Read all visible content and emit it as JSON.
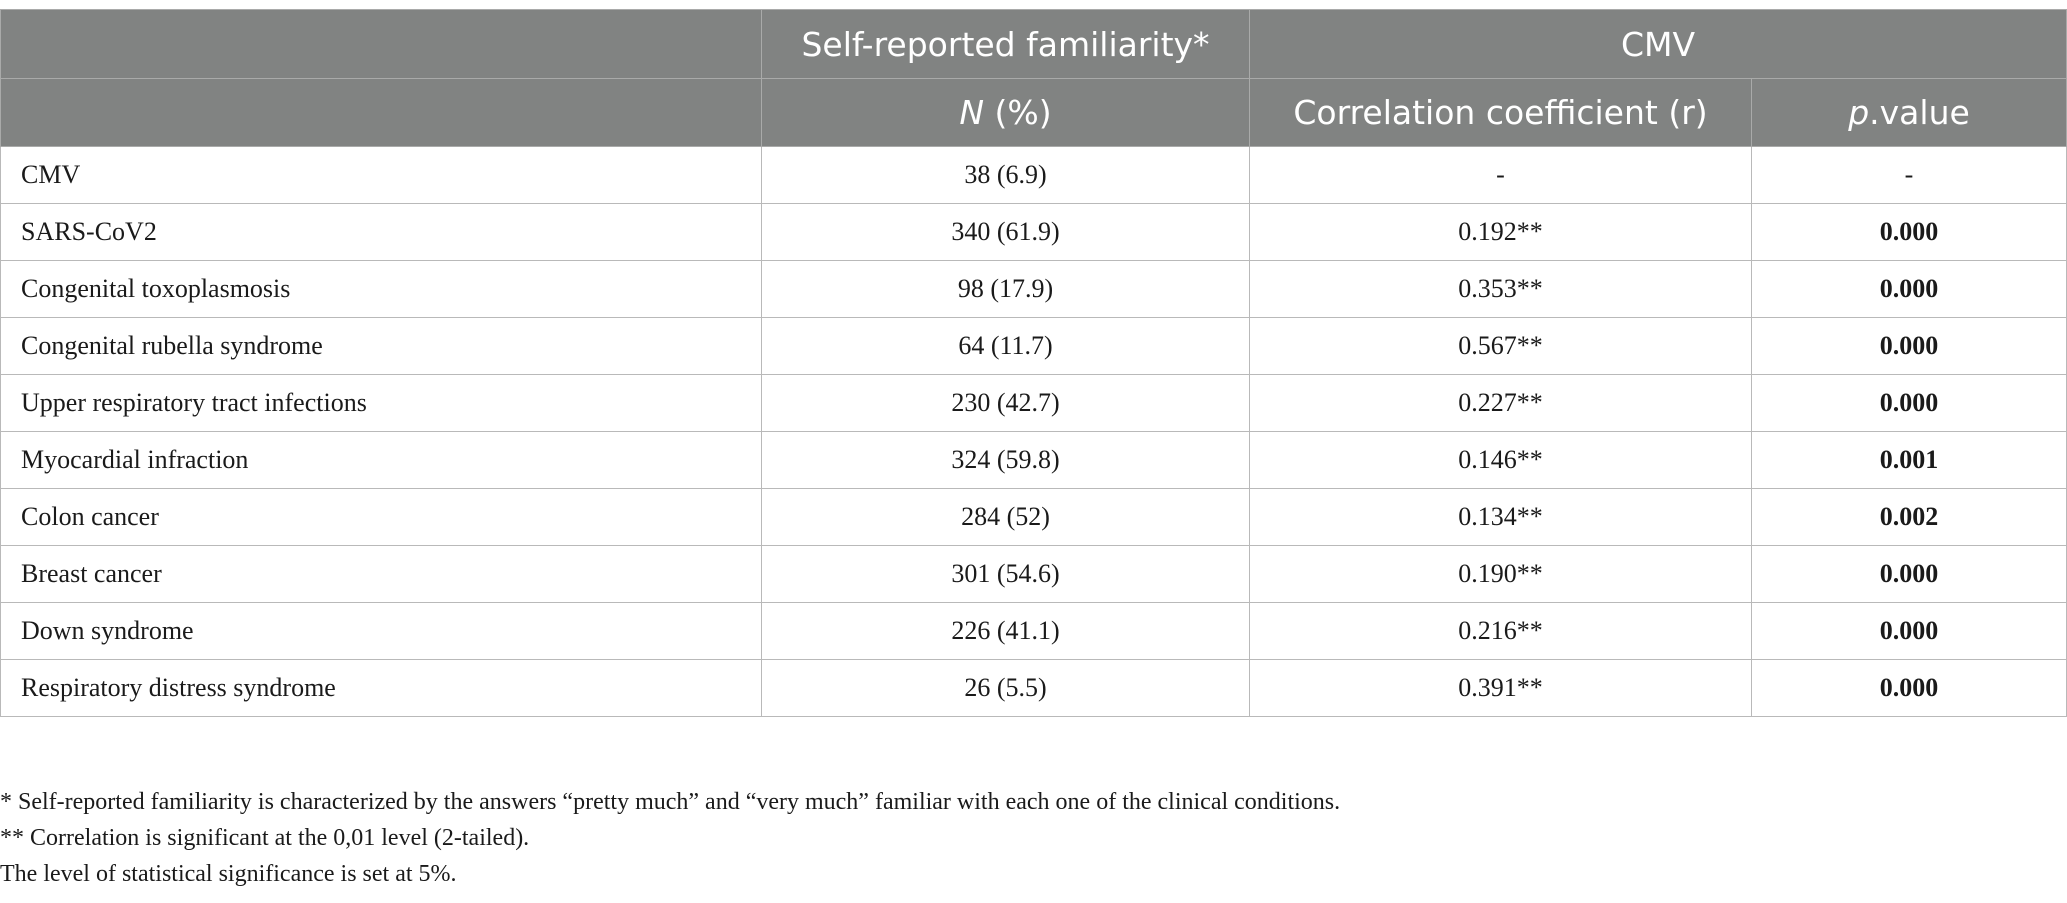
{
  "table": {
    "headers": {
      "row1": {
        "blank": "",
        "familiarity": "Self-reported familiarity*",
        "cmv": "CMV"
      },
      "row2": {
        "blank": "",
        "n_italic": "N",
        "n_rest": " (%)",
        "correlation": "Correlation coefficient (r)",
        "p_italic": "p",
        "p_rest": ".value"
      }
    },
    "rows": [
      {
        "condition": "CMV",
        "n_pct": "38 (6.9)",
        "r": "-",
        "p": "-"
      },
      {
        "condition": "SARS-CoV2",
        "n_pct": "340 (61.9)",
        "r": "0.192**",
        "p": "0.000"
      },
      {
        "condition": "Congenital toxoplasmosis",
        "n_pct": "98 (17.9)",
        "r": "0.353**",
        "p": "0.000"
      },
      {
        "condition": "Congenital rubella syndrome",
        "n_pct": "64 (11.7)",
        "r": "0.567**",
        "p": "0.000"
      },
      {
        "condition": "Upper respiratory tract infections",
        "n_pct": "230 (42.7)",
        "r": "0.227**",
        "p": "0.000"
      },
      {
        "condition": "Myocardial infraction",
        "n_pct": "324 (59.8)",
        "r": "0.146**",
        "p": "0.001"
      },
      {
        "condition": "Colon cancer",
        "n_pct": "284 (52)",
        "r": "0.134**",
        "p": "0.002"
      },
      {
        "condition": "Breast cancer",
        "n_pct": "301 (54.6)",
        "r": "0.190**",
        "p": "0.000"
      },
      {
        "condition": "Down syndrome",
        "n_pct": "226 (41.1)",
        "r": "0.216**",
        "p": "0.000"
      },
      {
        "condition": "Respiratory distress syndrome",
        "n_pct": "26 (5.5)",
        "r": "0.391**",
        "p": "0.000"
      }
    ]
  },
  "footnotes": [
    "* Self-reported familiarity is characterized by the answers “pretty much” and “very much” familiar with each one of the clinical conditions.",
    "** Correlation is significant at the 0,01 level (2-tailed).",
    "The level of statistical significance is set at 5%."
  ]
}
